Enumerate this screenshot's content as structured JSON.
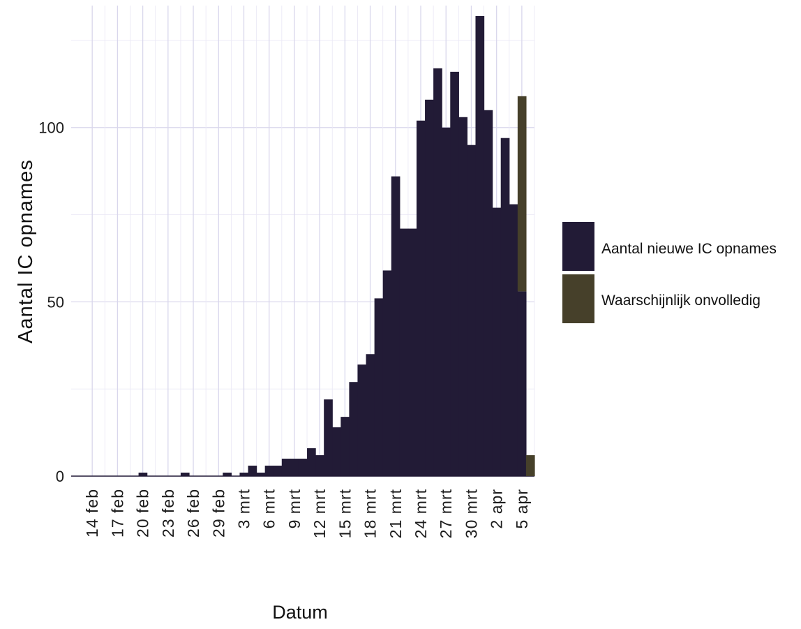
{
  "chart_data": {
    "type": "bar",
    "title": "",
    "xlabel": "Datum",
    "ylabel": "Aantal IC opnames",
    "ylim": [
      0,
      135
    ],
    "y_ticks": [
      0,
      50,
      100
    ],
    "grid": true,
    "legend_position": "right",
    "x_ticks": [
      "14 feb",
      "17 feb",
      "20 feb",
      "23 feb",
      "26 feb",
      "29 feb",
      "3 mrt",
      "6 mrt",
      "9 mrt",
      "12 mrt",
      "15 mrt",
      "18 mrt",
      "21 mrt",
      "24 mrt",
      "27 mrt",
      "30 mrt",
      "2 apr",
      "5 apr"
    ],
    "categories": [
      "2020-02-12",
      "2020-02-13",
      "2020-02-14",
      "2020-02-15",
      "2020-02-16",
      "2020-02-17",
      "2020-02-18",
      "2020-02-19",
      "2020-02-20",
      "2020-02-21",
      "2020-02-22",
      "2020-02-23",
      "2020-02-24",
      "2020-02-25",
      "2020-02-26",
      "2020-02-27",
      "2020-02-28",
      "2020-02-29",
      "2020-03-01",
      "2020-03-02",
      "2020-03-03",
      "2020-03-04",
      "2020-03-05",
      "2020-03-06",
      "2020-03-07",
      "2020-03-08",
      "2020-03-09",
      "2020-03-10",
      "2020-03-11",
      "2020-03-12",
      "2020-03-13",
      "2020-03-14",
      "2020-03-15",
      "2020-03-16",
      "2020-03-17",
      "2020-03-18",
      "2020-03-19",
      "2020-03-20",
      "2020-03-21",
      "2020-03-22",
      "2020-03-23",
      "2020-03-24",
      "2020-03-25",
      "2020-03-26",
      "2020-03-27",
      "2020-03-28",
      "2020-03-29",
      "2020-03-30",
      "2020-03-31",
      "2020-04-01",
      "2020-04-02",
      "2020-04-03",
      "2020-04-04",
      "2020-04-05",
      "2020-04-06"
    ],
    "series": [
      {
        "name": "Aantal nieuwe IC opnames",
        "color": "#221b36",
        "values": [
          0,
          0,
          0,
          0,
          0,
          0,
          0,
          0,
          1,
          0,
          0,
          0,
          0,
          1,
          0,
          0,
          0,
          0,
          1,
          0,
          1,
          3,
          1,
          3,
          3,
          5,
          5,
          5,
          8,
          6,
          22,
          14,
          17,
          27,
          32,
          35,
          51,
          59,
          86,
          71,
          71,
          102,
          108,
          117,
          100,
          116,
          103,
          95,
          132,
          105,
          77,
          97,
          78,
          53,
          0
        ]
      },
      {
        "name": "Waarschijnlijk onvolledig",
        "color": "#46402a",
        "values": [
          0,
          0,
          0,
          0,
          0,
          0,
          0,
          0,
          0,
          0,
          0,
          0,
          0,
          0,
          0,
          0,
          0,
          0,
          0,
          0,
          0,
          0,
          0,
          0,
          0,
          0,
          0,
          0,
          0,
          0,
          0,
          0,
          0,
          0,
          0,
          0,
          0,
          0,
          0,
          0,
          0,
          0,
          0,
          0,
          0,
          0,
          0,
          0,
          0,
          0,
          0,
          0,
          0,
          56,
          6
        ]
      }
    ]
  }
}
